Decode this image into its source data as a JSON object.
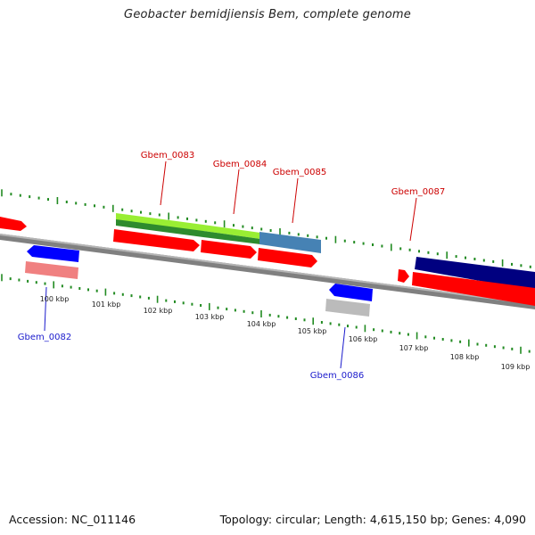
{
  "title": "Geobacter bemidjiensis Bem, complete genome",
  "footer": {
    "accession": "Accession: NC_011146",
    "summary": "Topology: circular; Length: 4,615,150 bp; Genes: 4,090"
  },
  "scale_labels": [
    "100 kbp",
    "101 kbp",
    "102 kbp",
    "103 kbp",
    "104 kbp",
    "105 kbp",
    "106 kbp",
    "107 kbp",
    "108 kbp",
    "109 kbp"
  ],
  "gene_labels": [
    {
      "name": "Gbem_0083",
      "color": "#cc0000"
    },
    {
      "name": "Gbem_0084",
      "color": "#cc0000"
    },
    {
      "name": "Gbem_0085",
      "color": "#cc0000"
    },
    {
      "name": "Gbem_0087",
      "color": "#cc0000"
    },
    {
      "name": "Gbem_0082",
      "color": "#1a1acc"
    },
    {
      "name": "Gbem_0086",
      "color": "#1a1acc"
    }
  ],
  "colors": {
    "cds": "#ff0000",
    "gene_forward_light": "#99ee33",
    "gene_forward_dark": "#2e8b2e",
    "gene_blue": "#4682b4",
    "gene_navy": "#000080",
    "gene_reverse_blue": "#0000ff",
    "gene_pink": "#f08080",
    "gene_grey": "#bbbbbb",
    "backbone": "#808080",
    "ticks": "#228b22"
  }
}
